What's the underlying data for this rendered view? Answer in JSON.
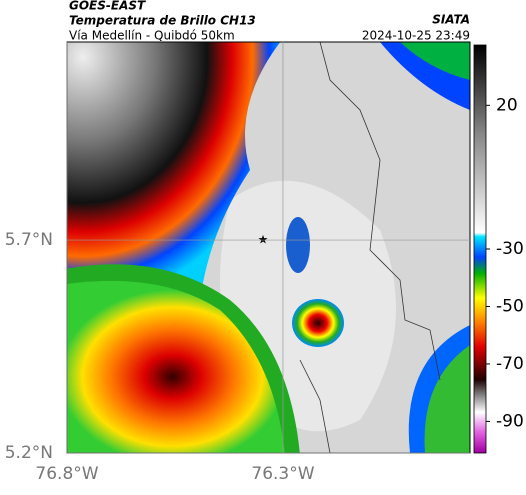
{
  "header": {
    "satellite": "GOES-EAST",
    "product": "Temperatura de Brillo CH13",
    "region": "Vía Medellín - Quibdó 50km",
    "source": "SIATA",
    "datetime": "2024-10-25 23:49"
  },
  "map": {
    "lon_range": [
      -76.8,
      -75.867
    ],
    "lat_range": [
      5.2,
      6.165
    ],
    "lon_ticks": [
      {
        "value": -76.8,
        "label": "76.8°W"
      },
      {
        "value": -76.3,
        "label": "76.3°W"
      }
    ],
    "lat_ticks": [
      {
        "value": 5.7,
        "label": "5.7°N"
      },
      {
        "value": 5.2,
        "label": "5.2°N"
      }
    ]
  },
  "colorbar": {
    "range": [
      41,
      -101
    ],
    "ticks": [
      20,
      -30,
      -50,
      -70,
      -90
    ]
  }
}
